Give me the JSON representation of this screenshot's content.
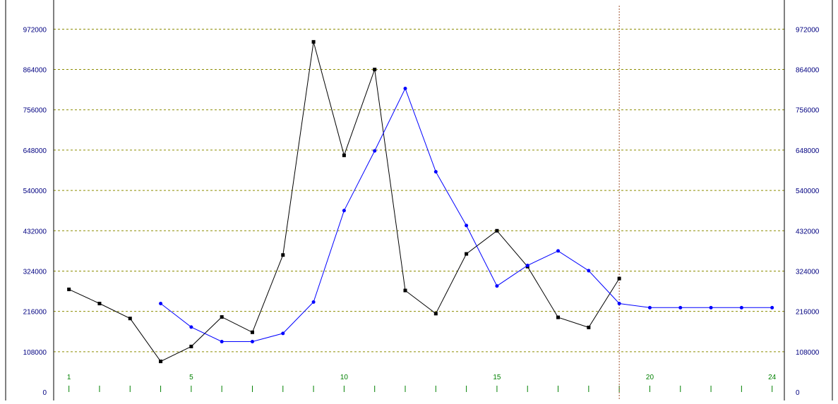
{
  "chart_data": {
    "type": "line",
    "title": "",
    "xlabel": "",
    "ylabel": "",
    "x": [
      1,
      2,
      3,
      4,
      5,
      6,
      7,
      8,
      9,
      10,
      11,
      12,
      13,
      14,
      15,
      16,
      17,
      18,
      19,
      20,
      21,
      22,
      23,
      24
    ],
    "x_tick_labels": [
      {
        "x": 1,
        "label": "1"
      },
      {
        "x": 5,
        "label": "5"
      },
      {
        "x": 10,
        "label": "10"
      },
      {
        "x": 15,
        "label": "15"
      },
      {
        "x": 20,
        "label": "20"
      },
      {
        "x": 24,
        "label": "24"
      }
    ],
    "xlim": [
      0.5,
      24.4
    ],
    "ylim": [
      0,
      1035000
    ],
    "y_ticks": [
      0,
      108000,
      216000,
      324000,
      432000,
      540000,
      648000,
      756000,
      864000,
      972000
    ],
    "y_tick_labels": [
      "0",
      "108000",
      "216000",
      "324000",
      "432000",
      "540000",
      "648000",
      "756000",
      "864000",
      "972000"
    ],
    "grid": true,
    "legend": "none",
    "vertical_marker_x": 19,
    "series": [
      {
        "color": "#000000",
        "marker": "square",
        "x": [
          1,
          2,
          3,
          4,
          5,
          6,
          7,
          8,
          9,
          10,
          11,
          12,
          13,
          14,
          15,
          16,
          17,
          18,
          19
        ],
        "values": [
          275000,
          237000,
          197000,
          82000,
          122000,
          201000,
          160000,
          367000,
          938000,
          634000,
          864000,
          272000,
          210000,
          370000,
          432000,
          336000,
          200000,
          173000,
          304000
        ]
      },
      {
        "color": "#0000ff",
        "marker": "circle",
        "x": [
          4,
          5,
          6,
          7,
          8,
          9,
          10,
          11,
          12,
          13,
          14,
          15,
          16,
          17,
          18,
          19,
          20,
          21,
          22,
          23,
          24
        ],
        "values": [
          237000,
          174000,
          135000,
          135000,
          157000,
          241000,
          486000,
          646000,
          813000,
          590000,
          446000,
          284000,
          339000,
          378000,
          325000,
          237000,
          226000,
          226000,
          226000,
          226000,
          226000
        ]
      }
    ]
  }
}
